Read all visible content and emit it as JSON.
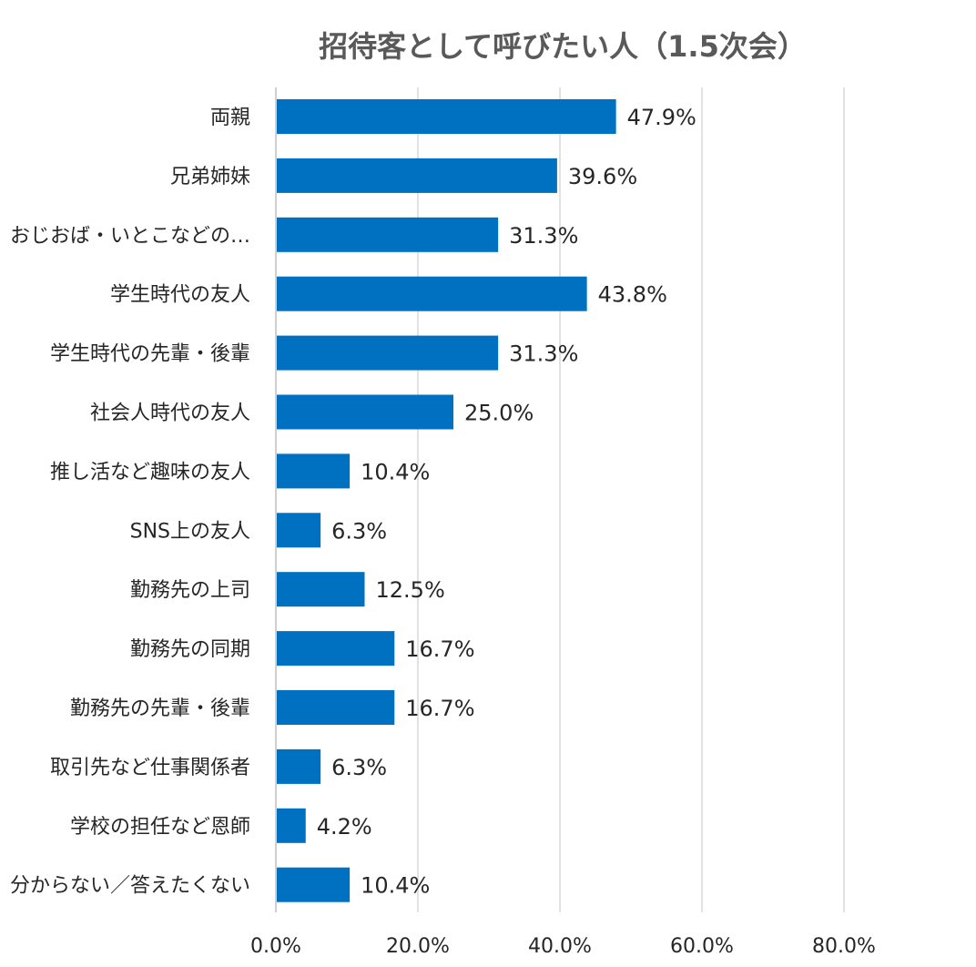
{
  "chart_data": {
    "type": "bar",
    "orientation": "horizontal",
    "title": "招待客として呼びたい人（1.5次会）",
    "categories": [
      "両親",
      "兄弟姉妹",
      "おじおば・いとこなどの…",
      "学生時代の友人",
      "学生時代の先輩・後輩",
      "社会人時代の友人",
      "推し活など趣味の友人",
      "SNS上の友人",
      "勤務先の上司",
      "勤務先の同期",
      "勤務先の先輩・後輩",
      "取引先など仕事関係者",
      "学校の担任など恩師",
      "分からない／答えたくない"
    ],
    "values": [
      47.9,
      39.6,
      31.3,
      43.8,
      31.3,
      25.0,
      10.4,
      6.3,
      12.5,
      16.7,
      16.7,
      6.3,
      4.2,
      10.4
    ],
    "value_labels": [
      "47.9%",
      "39.6%",
      "31.3%",
      "43.8%",
      "31.3%",
      "25.0%",
      "10.4%",
      "6.3%",
      "12.5%",
      "16.7%",
      "16.7%",
      "6.3%",
      "4.2%",
      "10.4%"
    ],
    "xlim": [
      0,
      80
    ],
    "xticks": [
      0,
      20,
      40,
      60,
      80
    ],
    "xtick_labels": [
      "0.0%",
      "20.0%",
      "40.0%",
      "60.0%",
      "80.0%"
    ],
    "xlabel": "",
    "ylabel": "",
    "grid": true,
    "bar_color": "#0070c0",
    "legend": "none"
  }
}
